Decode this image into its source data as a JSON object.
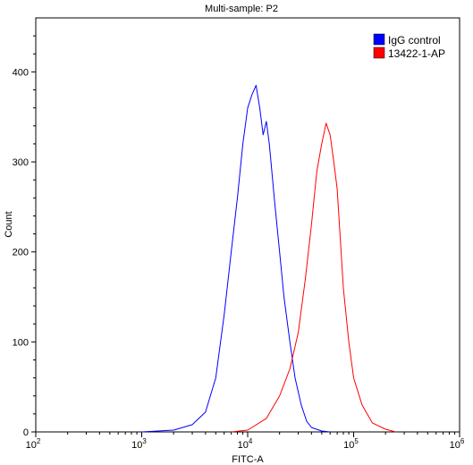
{
  "chart_data": {
    "type": "line",
    "title": "Multi-sample: P2",
    "xlabel": "FITC-A",
    "ylabel": "Count",
    "x_scale": "log",
    "xlim": [
      100,
      1000000
    ],
    "ylim": [
      0,
      460
    ],
    "grid": false,
    "legend_position": "top-right",
    "y_ticks": [
      0,
      100,
      200,
      300,
      400
    ],
    "x_ticks": [
      {
        "value": 100,
        "base": "10",
        "exp": "2"
      },
      {
        "value": 1000,
        "base": "10",
        "exp": "3"
      },
      {
        "value": 10000,
        "base": "10",
        "exp": "4"
      },
      {
        "value": 100000,
        "base": "10",
        "exp": "5"
      },
      {
        "value": 1000000,
        "base": "10",
        "exp": "6"
      }
    ],
    "series": [
      {
        "name": "IgG control",
        "color": "#0000ff",
        "x": [
          1000,
          2000,
          3000,
          4000,
          5000,
          6000,
          7000,
          8000,
          9000,
          10000,
          11000,
          12000,
          13000,
          14000,
          15000,
          16000,
          18000,
          20000,
          22000,
          25000,
          28000,
          32000,
          36000,
          40000,
          50000,
          60000
        ],
        "y": [
          0,
          2,
          8,
          22,
          60,
          130,
          200,
          260,
          320,
          360,
          375,
          385,
          360,
          330,
          345,
          320,
          255,
          200,
          150,
          100,
          60,
          30,
          12,
          5,
          1,
          0
        ]
      },
      {
        "name": "13422-1-AP",
        "color": "#ff0000",
        "x": [
          7000,
          10000,
          15000,
          20000,
          25000,
          30000,
          35000,
          40000,
          45000,
          50000,
          55000,
          60000,
          65000,
          70000,
          80000,
          90000,
          100000,
          120000,
          150000,
          200000,
          250000
        ],
        "y": [
          0,
          2,
          15,
          40,
          70,
          110,
          170,
          230,
          290,
          320,
          343,
          330,
          300,
          270,
          160,
          100,
          60,
          30,
          10,
          3,
          0
        ]
      }
    ]
  }
}
